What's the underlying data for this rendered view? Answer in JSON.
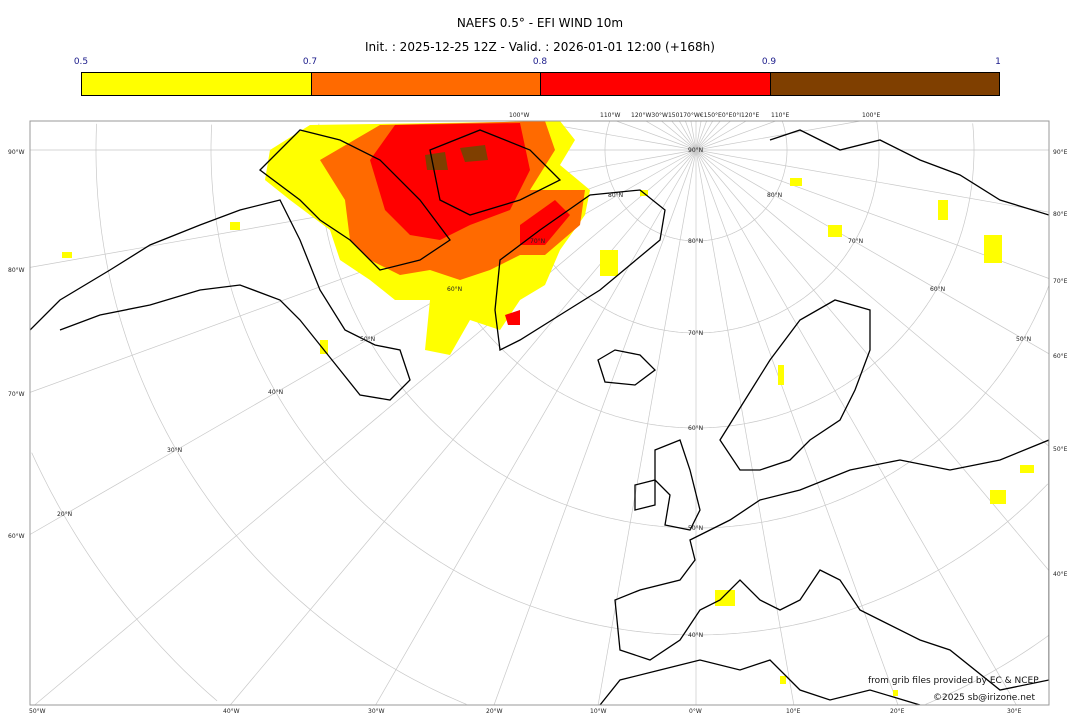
{
  "title": "NAEFS 0.5° - EFI WIND 10m",
  "subtitle": "Init. : 2025-12-25 12Z - Valid. : 2026-01-01 12:00 (+168h)",
  "colorbar": {
    "ticks": [
      "0.5",
      "0.7",
      "0.8",
      "0.9",
      "1"
    ],
    "colors": [
      "#ffff00",
      "#ff6a00",
      "#ff0000",
      "#7f3f00"
    ]
  },
  "labels": {
    "left": [
      "90°W",
      "80°W",
      "70°W",
      "60°W"
    ],
    "right": [
      "90°E",
      "80°E",
      "70°E",
      "60°E",
      "50°E",
      "40°E"
    ],
    "bottom": [
      "50°W",
      "40°W",
      "30°W",
      "20°W",
      "10°W",
      "0°W",
      "10°E",
      "20°E",
      "30°E"
    ],
    "top": [
      "100°W",
      "110°W",
      "120°W30°W150170°W€150°E0°E0°I120°E",
      "110°E",
      "100°E"
    ],
    "lat": [
      "90°N",
      "80°N",
      "80°N",
      "70°N",
      "60°N",
      "50°N",
      "40°N",
      "30°N",
      "20°N",
      "70°N",
      "60°N",
      "50°N",
      "40°N",
      "80°N",
      "70°N",
      "60°N",
      "50°N"
    ]
  },
  "credits": {
    "source": "from grib files provided by EC & NCEP",
    "copyright": "©2025 sb@irizone.net"
  }
}
